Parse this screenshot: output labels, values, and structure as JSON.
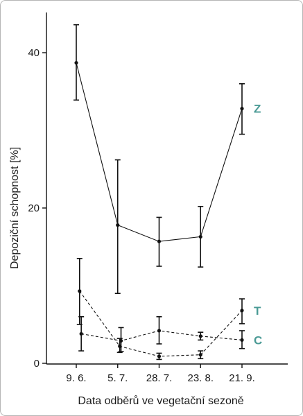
{
  "chart_data": {
    "type": "line",
    "title": "",
    "xlabel": "Data odběrů ve vegetační sezoně",
    "ylabel": "Depoziční schopnost [%]",
    "ylim": [
      0,
      45
    ],
    "yticks": [
      0,
      20,
      40
    ],
    "categories": [
      "9. 6.",
      "5. 7.",
      "28. 7.",
      "23. 8.",
      "21. 9."
    ],
    "grid": false,
    "series_label_color": "#4a9a95",
    "series": [
      {
        "name": "Z",
        "line_style": "solid",
        "x": [
          0,
          1,
          2,
          3,
          4
        ],
        "values": [
          38.7,
          17.8,
          15.7,
          16.3,
          32.8
        ],
        "err_low": [
          33.9,
          9.0,
          12.5,
          12.4,
          29.5
        ],
        "err_high": [
          43.6,
          26.2,
          18.8,
          20.2,
          36.0
        ]
      },
      {
        "name": "T",
        "line_style": "dashed",
        "x": [
          0.08,
          1.05,
          2,
          3,
          4
        ],
        "values": [
          9.3,
          2.2,
          0.9,
          1.1,
          6.8
        ],
        "err_low": [
          5.0,
          1.4,
          0.5,
          0.6,
          5.1
        ],
        "err_high": [
          13.5,
          3.2,
          1.3,
          1.6,
          8.3
        ]
      },
      {
        "name": "C",
        "line_style": "dashed",
        "x": [
          0.12,
          1.08,
          2,
          3,
          4
        ],
        "values": [
          3.8,
          2.9,
          4.2,
          3.5,
          3.0
        ],
        "err_low": [
          1.6,
          1.5,
          2.5,
          3.0,
          1.9
        ],
        "err_high": [
          6.0,
          4.6,
          6.0,
          4.0,
          4.2
        ]
      }
    ]
  }
}
